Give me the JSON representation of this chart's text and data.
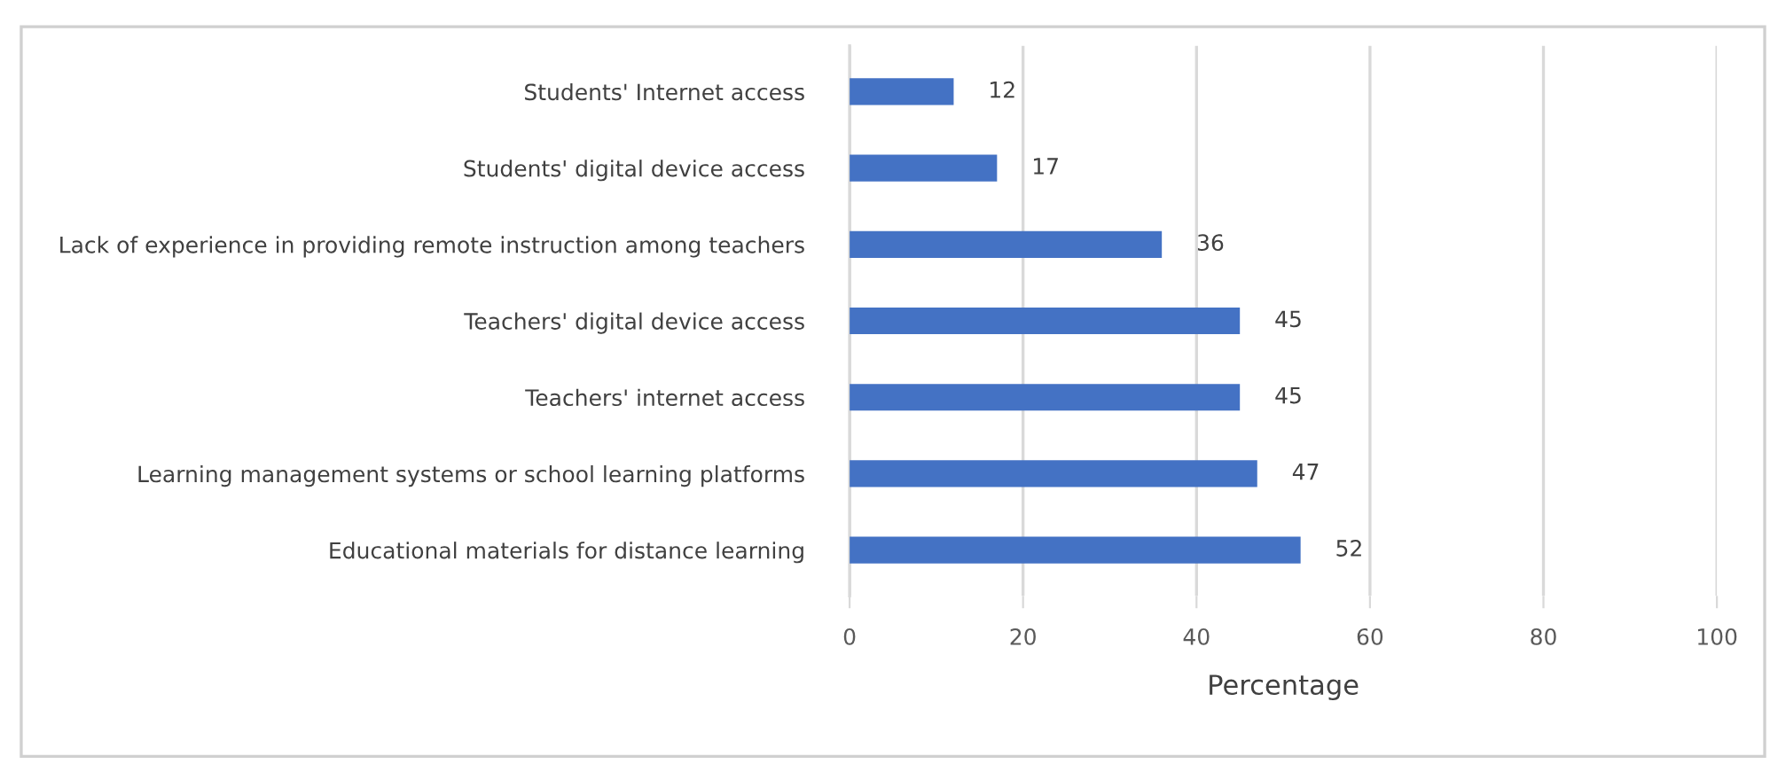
{
  "chart_data": {
    "type": "bar",
    "orientation": "horizontal",
    "xlabel": "Percentage",
    "categories": [
      "Students' Internet access",
      "Students' digital device access",
      "Lack of experience in providing remote instruction among teachers",
      "Teachers' digital device access",
      "Teachers' internet access",
      "Learning management systems or school learning platforms",
      "Educational materials for distance learning"
    ],
    "values": [
      12,
      17,
      36,
      45,
      45,
      47,
      52
    ],
    "color": "#4472c4",
    "xlim": [
      0,
      100
    ],
    "xticks": [
      0,
      20,
      40,
      60,
      80,
      100
    ],
    "grid": "x",
    "data_labels": true,
    "legend": false
  }
}
